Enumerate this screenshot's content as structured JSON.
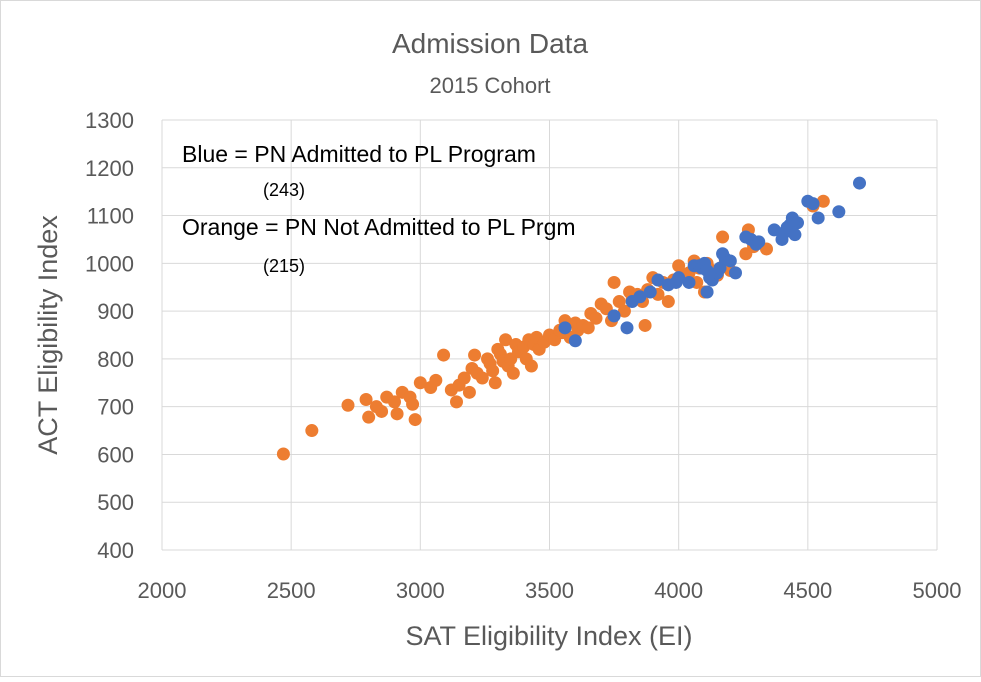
{
  "chart_data": {
    "type": "scatter",
    "title": "Admission Data",
    "subtitle": "2015 Cohort",
    "xlabel": "SAT Eligibility Index (EI)",
    "ylabel": "ACT Eligibility Index",
    "xlim": [
      2000,
      5000
    ],
    "ylim": [
      400,
      1300
    ],
    "xticks": [
      2000,
      2500,
      3000,
      3500,
      4000,
      4500,
      5000
    ],
    "yticks": [
      400,
      500,
      600,
      700,
      800,
      900,
      1000,
      1100,
      1200,
      1300
    ],
    "grid": true,
    "annotations": [
      {
        "text": "Blue = PN Admitted to PL Program",
        "size": "large"
      },
      {
        "text": "(243)",
        "size": "small"
      },
      {
        "text": "Orange = PN Not Admitted to PL Prgm",
        "size": "large"
      },
      {
        "text": "(215)",
        "size": "small"
      }
    ],
    "series": [
      {
        "color": "#ED7D31",
        "points": [
          [
            2470,
            601
          ],
          [
            2580,
            650
          ],
          [
            2720,
            703
          ],
          [
            2790,
            715
          ],
          [
            2800,
            678
          ],
          [
            2830,
            700
          ],
          [
            2850,
            690
          ],
          [
            2870,
            720
          ],
          [
            2900,
            710
          ],
          [
            2910,
            685
          ],
          [
            2930,
            730
          ],
          [
            2960,
            720
          ],
          [
            2970,
            705
          ],
          [
            2980,
            673
          ],
          [
            3000,
            750
          ],
          [
            3040,
            740
          ],
          [
            3060,
            755
          ],
          [
            3090,
            808
          ],
          [
            3120,
            735
          ],
          [
            3140,
            710
          ],
          [
            3150,
            745
          ],
          [
            3170,
            760
          ],
          [
            3190,
            730
          ],
          [
            3200,
            780
          ],
          [
            3210,
            808
          ],
          [
            3220,
            770
          ],
          [
            3240,
            760
          ],
          [
            3260,
            800
          ],
          [
            3270,
            790
          ],
          [
            3280,
            775
          ],
          [
            3290,
            750
          ],
          [
            3300,
            820
          ],
          [
            3310,
            810
          ],
          [
            3320,
            795
          ],
          [
            3330,
            840
          ],
          [
            3340,
            785
          ],
          [
            3350,
            800
          ],
          [
            3360,
            770
          ],
          [
            3370,
            830
          ],
          [
            3380,
            815
          ],
          [
            3400,
            825
          ],
          [
            3410,
            800
          ],
          [
            3420,
            840
          ],
          [
            3430,
            785
          ],
          [
            3440,
            830
          ],
          [
            3450,
            845
          ],
          [
            3460,
            820
          ],
          [
            3480,
            835
          ],
          [
            3500,
            850
          ],
          [
            3520,
            840
          ],
          [
            3540,
            860
          ],
          [
            3550,
            855
          ],
          [
            3560,
            880
          ],
          [
            3580,
            845
          ],
          [
            3600,
            875
          ],
          [
            3610,
            860
          ],
          [
            3630,
            870
          ],
          [
            3650,
            865
          ],
          [
            3660,
            895
          ],
          [
            3680,
            885
          ],
          [
            3700,
            915
          ],
          [
            3720,
            905
          ],
          [
            3740,
            880
          ],
          [
            3750,
            960
          ],
          [
            3770,
            920
          ],
          [
            3790,
            900
          ],
          [
            3810,
            940
          ],
          [
            3820,
            925
          ],
          [
            3840,
            935
          ],
          [
            3860,
            920
          ],
          [
            3870,
            870
          ],
          [
            3880,
            945
          ],
          [
            3900,
            970
          ],
          [
            3920,
            935
          ],
          [
            3940,
            960
          ],
          [
            3960,
            920
          ],
          [
            3980,
            965
          ],
          [
            4000,
            995
          ],
          [
            4020,
            975
          ],
          [
            4040,
            980
          ],
          [
            4060,
            1005
          ],
          [
            4070,
            960
          ],
          [
            4080,
            990
          ],
          [
            4100,
            940
          ],
          [
            4110,
            1000
          ],
          [
            4130,
            985
          ],
          [
            4150,
            975
          ],
          [
            4170,
            1055
          ],
          [
            4180,
            1000
          ],
          [
            4200,
            985
          ],
          [
            4260,
            1020
          ],
          [
            4270,
            1070
          ],
          [
            4290,
            1035
          ],
          [
            4340,
            1030
          ],
          [
            4520,
            1120
          ],
          [
            4560,
            1130
          ]
        ]
      },
      {
        "color": "#4472C4",
        "points": [
          [
            3560,
            865
          ],
          [
            3600,
            838
          ],
          [
            3750,
            890
          ],
          [
            3800,
            865
          ],
          [
            3820,
            920
          ],
          [
            3850,
            930
          ],
          [
            3890,
            940
          ],
          [
            3920,
            965
          ],
          [
            3960,
            955
          ],
          [
            3990,
            960
          ],
          [
            4000,
            970
          ],
          [
            4040,
            960
          ],
          [
            4060,
            995
          ],
          [
            4080,
            995
          ],
          [
            4090,
            990
          ],
          [
            4100,
            1000
          ],
          [
            4110,
            985
          ],
          [
            4120,
            970
          ],
          [
            4130,
            965
          ],
          [
            4150,
            980
          ],
          [
            4160,
            990
          ],
          [
            4170,
            1020
          ],
          [
            4180,
            1010
          ],
          [
            4200,
            1005
          ],
          [
            4220,
            980
          ],
          [
            4260,
            1055
          ],
          [
            4280,
            1050
          ],
          [
            4300,
            1040
          ],
          [
            4310,
            1045
          ],
          [
            4370,
            1070
          ],
          [
            4400,
            1050
          ],
          [
            4410,
            1065
          ],
          [
            4420,
            1075
          ],
          [
            4430,
            1080
          ],
          [
            4440,
            1095
          ],
          [
            4450,
            1060
          ],
          [
            4460,
            1085
          ],
          [
            4500,
            1130
          ],
          [
            4520,
            1125
          ],
          [
            4540,
            1095
          ],
          [
            4620,
            1108
          ],
          [
            4700,
            1168
          ],
          [
            4110,
            940
          ]
        ]
      }
    ]
  }
}
